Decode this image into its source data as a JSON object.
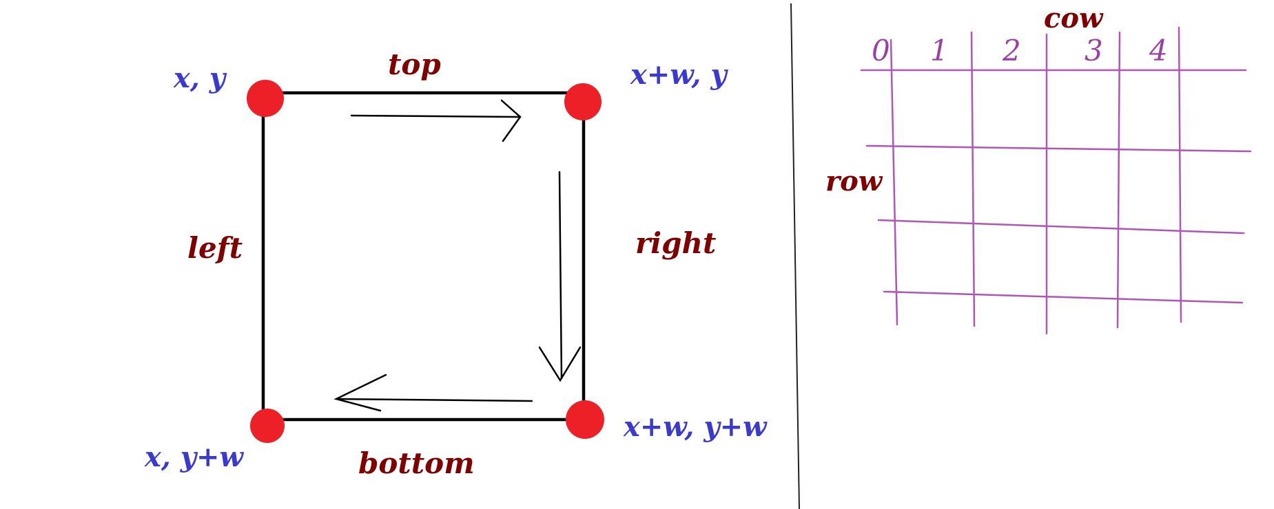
{
  "square": {
    "corners": {
      "top_left": "x, y",
      "top_right": "x+w, y",
      "bottom_right": "x+w, y+w",
      "bottom_left": "x, y+w"
    },
    "sides": {
      "top": "top",
      "right": "right",
      "bottom": "bottom",
      "left": "left"
    }
  },
  "grid": {
    "column_label": "cow",
    "row_label": "row",
    "column_indices": [
      "0",
      "1",
      "2",
      "3",
      "4"
    ]
  },
  "colors": {
    "corner_dot": "#ee2027",
    "square_outline": "#000000",
    "coordinate_text": "#3a3ad0",
    "side_text": "#800000",
    "grid_lines": "#b054b8",
    "divider": "#222222"
  }
}
